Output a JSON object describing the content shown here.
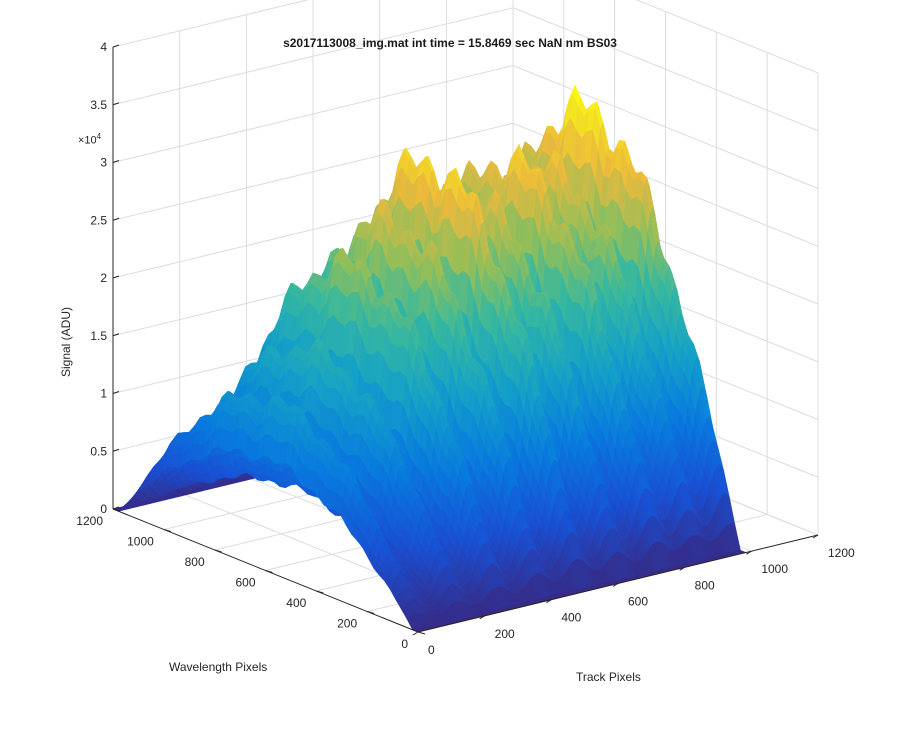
{
  "chart_data": {
    "type": "surface",
    "title": "s2017113008_img.mat int time = 15.8469 sec  NaN nm BS03",
    "xlabel": "Wavelength Pixels",
    "ylabel": "Track Pixels",
    "zlabel": "Signal (ADU)",
    "z_exponent_base": "×10",
    "z_exponent_power": "4",
    "xlim": [
      0,
      1200
    ],
    "ylim": [
      0,
      1200
    ],
    "zlim": [
      0,
      40000
    ],
    "x_ticks": [
      "0",
      "200",
      "400",
      "600",
      "800",
      "1000",
      "1200"
    ],
    "y_ticks": [
      "0",
      "200",
      "400",
      "600",
      "800",
      "1000",
      "1200"
    ],
    "z_ticks": [
      "0",
      "0.5",
      "1",
      "1.5",
      "2",
      "2.5",
      "3",
      "3.5",
      "4"
    ],
    "grid": true,
    "colormap": "parula",
    "series": [
      {
        "track_center": 30,
        "peak_signal": 14500
      },
      {
        "track_center": 150,
        "peak_signal": 18000
      },
      {
        "track_center": 270,
        "peak_signal": 24500
      },
      {
        "track_center": 390,
        "peak_signal": 27500
      },
      {
        "track_center": 510,
        "peak_signal": 31500
      },
      {
        "track_center": 630,
        "peak_signal": 28000
      },
      {
        "track_center": 750,
        "peak_signal": 30000
      },
      {
        "track_center": 860,
        "peak_signal": 28500
      },
      {
        "track_center": 970,
        "peak_signal": 33000
      }
    ]
  }
}
